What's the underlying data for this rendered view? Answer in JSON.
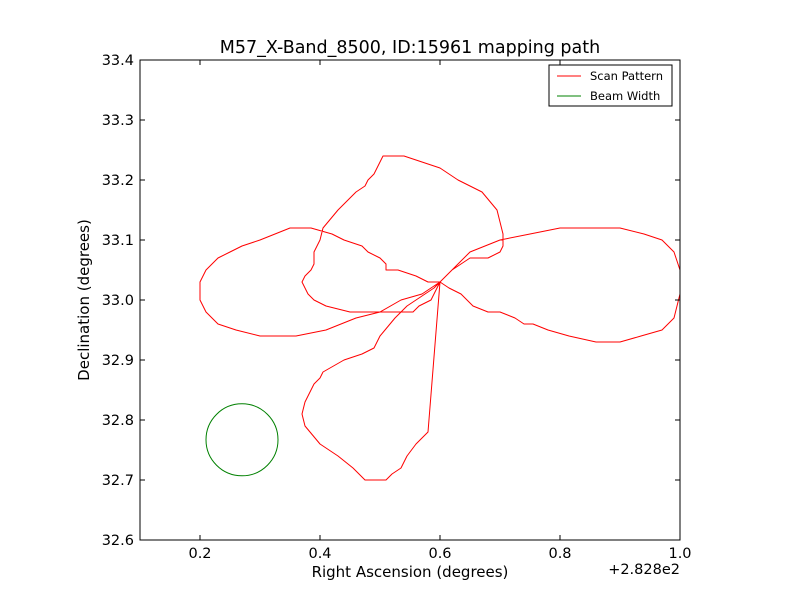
{
  "chart_data": {
    "type": "line",
    "title": "M57_X-Band_8500, ID:15961 mapping path",
    "xlabel": "Right Ascension (degrees)",
    "ylabel": "Declination (degrees)",
    "x_offset_label": "+2.828e2",
    "xlim": [
      0.1,
      1.0
    ],
    "ylim": [
      32.6,
      33.4
    ],
    "xticks": [
      0.2,
      0.4,
      0.6,
      0.8,
      1.0
    ],
    "xtick_labels": [
      "0.2",
      "0.4",
      "0.6",
      "0.8",
      "1.0"
    ],
    "yticks": [
      32.6,
      32.7,
      32.8,
      32.9,
      33.0,
      33.1,
      33.2,
      33.3,
      33.4
    ],
    "ytick_labels": [
      "32.6",
      "32.7",
      "32.8",
      "32.9",
      "33.0",
      "33.1",
      "33.2",
      "33.3",
      "33.4"
    ],
    "grid": false,
    "legend_position": "top-right",
    "series": [
      {
        "name": "Scan Pattern",
        "color": "#ff0000",
        "x": [
          0.6,
          0.62,
          0.65,
          0.68,
          0.7,
          0.705,
          0.705,
          0.7,
          0.695,
          0.67,
          0.63,
          0.6,
          0.57,
          0.54,
          0.52,
          0.505,
          0.5,
          0.495,
          0.49,
          0.48,
          0.475,
          0.46,
          0.43,
          0.405,
          0.4,
          0.39,
          0.39,
          0.385,
          0.375,
          0.37,
          0.375,
          0.38,
          0.39,
          0.41,
          0.45,
          0.5,
          0.53,
          0.555,
          0.565,
          0.585,
          0.6,
          0.62,
          0.65,
          0.7,
          0.75,
          0.8,
          0.86,
          0.9,
          0.94,
          0.97,
          0.99,
          1.0,
          1.0,
          0.995,
          0.99,
          0.97,
          0.935,
          0.9,
          0.86,
          0.815,
          0.78,
          0.755,
          0.74,
          0.725,
          0.7,
          0.685,
          0.68,
          0.655,
          0.635,
          0.615,
          0.6,
          0.59,
          0.575,
          0.56,
          0.545,
          0.525,
          0.5,
          0.495,
          0.49,
          0.47,
          0.44,
          0.405,
          0.4,
          0.39,
          0.385,
          0.38,
          0.375,
          0.37,
          0.375,
          0.4,
          0.43,
          0.455,
          0.475,
          0.49,
          0.51,
          0.52,
          0.535,
          0.545,
          0.56,
          0.58,
          0.6,
          0.57,
          0.535,
          0.5,
          0.46,
          0.41,
          0.36,
          0.32,
          0.3,
          0.26,
          0.23,
          0.21,
          0.205,
          0.2,
          0.2,
          0.21,
          0.23,
          0.25,
          0.27,
          0.3,
          0.325,
          0.35,
          0.385,
          0.42,
          0.44,
          0.47,
          0.48,
          0.5,
          0.51,
          0.51,
          0.53,
          0.56,
          0.58,
          0.6
        ],
        "y": [
          33.03,
          33.05,
          33.07,
          33.07,
          33.08,
          33.09,
          33.11,
          33.13,
          33.15,
          33.18,
          33.2,
          33.22,
          33.23,
          33.24,
          33.24,
          33.24,
          33.23,
          33.22,
          33.21,
          33.2,
          33.19,
          33.18,
          33.15,
          33.12,
          33.1,
          33.08,
          33.06,
          33.05,
          33.04,
          33.03,
          33.02,
          33.01,
          33.0,
          32.99,
          32.98,
          32.98,
          32.98,
          32.98,
          32.99,
          33.0,
          33.03,
          33.05,
          33.08,
          33.1,
          33.11,
          33.12,
          33.12,
          33.12,
          33.11,
          33.1,
          33.08,
          33.05,
          33.01,
          32.99,
          32.97,
          32.95,
          32.94,
          32.93,
          32.93,
          32.94,
          32.95,
          32.96,
          32.96,
          32.97,
          32.98,
          32.98,
          32.98,
          32.99,
          33.01,
          33.02,
          33.03,
          33.02,
          33.01,
          33.0,
          32.99,
          32.97,
          32.94,
          32.93,
          32.92,
          32.91,
          32.9,
          32.88,
          32.87,
          32.86,
          32.85,
          32.84,
          32.83,
          32.81,
          32.79,
          32.76,
          32.74,
          32.72,
          32.7,
          32.7,
          32.7,
          32.71,
          32.72,
          32.74,
          32.76,
          32.78,
          33.03,
          33.01,
          33.0,
          32.98,
          32.97,
          32.95,
          32.94,
          32.94,
          32.94,
          32.95,
          32.96,
          32.98,
          32.99,
          33.0,
          33.03,
          33.05,
          33.07,
          33.08,
          33.09,
          33.1,
          33.11,
          33.12,
          33.12,
          33.11,
          33.1,
          33.09,
          33.08,
          33.07,
          33.06,
          33.05,
          33.05,
          33.04,
          33.03,
          33.03
        ]
      },
      {
        "name": "Beam Width",
        "color": "#008000",
        "shape": "circle",
        "center_x": 0.27,
        "center_y": 32.767,
        "radius": 0.06
      }
    ]
  }
}
